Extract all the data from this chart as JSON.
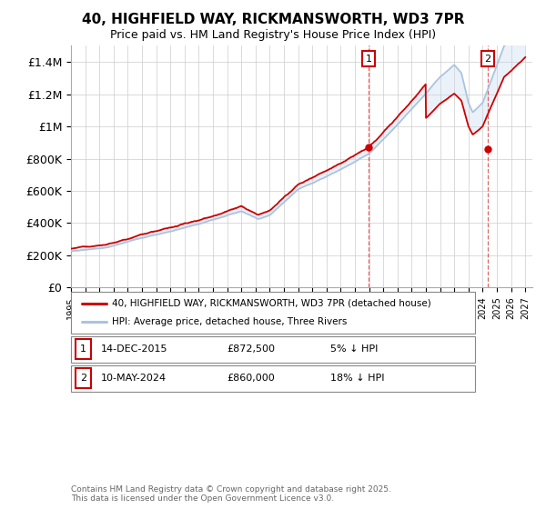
{
  "title": "40, HIGHFIELD WAY, RICKMANSWORTH, WD3 7PR",
  "subtitle": "Price paid vs. HM Land Registry's House Price Index (HPI)",
  "ylabel_ticks": [
    "£0",
    "£200K",
    "£400K",
    "£600K",
    "£800K",
    "£1M",
    "£1.2M",
    "£1.4M"
  ],
  "ytick_values": [
    0,
    200000,
    400000,
    600000,
    800000,
    1000000,
    1200000,
    1400000
  ],
  "ylim": [
    0,
    1500000
  ],
  "xlim_start": 1995.0,
  "xlim_end": 2027.5,
  "background_color": "#ffffff",
  "plot_bg_color": "#ffffff",
  "grid_color": "#cccccc",
  "hpi_line_color": "#aac4e0",
  "price_line_color": "#cc0000",
  "fill_color": "#c8d8ec",
  "marker1_date": 2015.96,
  "marker2_date": 2024.37,
  "marker1_price": 872500,
  "marker2_price": 860000,
  "legend_line1": "40, HIGHFIELD WAY, RICKMANSWORTH, WD3 7PR (detached house)",
  "legend_line2": "HPI: Average price, detached house, Three Rivers",
  "annotation1_date": "14-DEC-2015",
  "annotation1_price": "£872,500",
  "annotation1_hpi": "5% ↓ HPI",
  "annotation2_date": "10-MAY-2024",
  "annotation2_price": "£860,000",
  "annotation2_hpi": "18% ↓ HPI",
  "footer": "Contains HM Land Registry data © Crown copyright and database right 2025.\nThis data is licensed under the Open Government Licence v3.0."
}
